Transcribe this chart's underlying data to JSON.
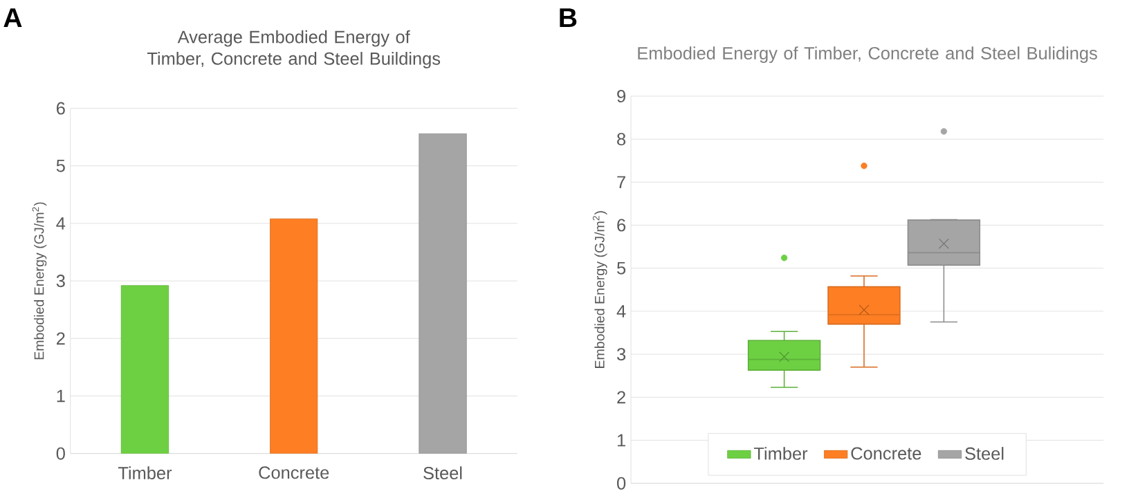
{
  "chart_data": [
    {
      "type": "bar",
      "title": "Average Embodied Energy of Timber, Concrete and Steel Buildings",
      "ylabel": "Embodied Energy (GJ/m$^{2}$)",
      "categories": [
        "Timber",
        "Concrete",
        "Steel"
      ],
      "values": [
        2.92,
        4.08,
        5.56
      ],
      "colors": [
        "#6dd043",
        "#fd7e23",
        "#a5a5a5"
      ],
      "ylim": [
        0,
        6
      ],
      "yticks": [
        0,
        1,
        2,
        3,
        4,
        5,
        6
      ],
      "grid": "y",
      "annotations": [
        "A"
      ]
    },
    {
      "type": "box",
      "title": "Embodied Energy of Timber, Concrete and Steel Bulidings",
      "ylabel": "Embodied Energy (GJ/m$^{2}$)",
      "categories": [
        null
      ],
      "ylim": [
        0,
        9
      ],
      "yticks": [
        0,
        1,
        2,
        3,
        4,
        5,
        6,
        7,
        8,
        9
      ],
      "grid": "y",
      "legend": "bottom",
      "annotations": [
        "B"
      ],
      "series": [
        {
          "name": "Timber",
          "color": "#6dd043",
          "boxes": [
            {
              "low": 2.23,
              "q1": 2.63,
              "median": 2.88,
              "q3": 3.32,
              "high": 3.53,
              "mean": 2.94,
              "outliers": [
                5.24
              ]
            }
          ]
        },
        {
          "name": "Concrete",
          "color": "#fd7e23",
          "boxes": [
            {
              "low": 2.7,
              "q1": 3.7,
              "median": 3.92,
              "q3": 4.57,
              "high": 4.82,
              "mean": 4.03,
              "outliers": [
                7.38
              ]
            }
          ]
        },
        {
          "name": "Steel",
          "color": "#a5a5a5",
          "boxes": [
            {
              "low": 3.75,
              "q1": 5.07,
              "median": 5.36,
              "q3": 6.12,
              "high": 6.13,
              "mean": 5.57,
              "outliers": [
                8.18
              ]
            }
          ]
        }
      ]
    }
  ]
}
